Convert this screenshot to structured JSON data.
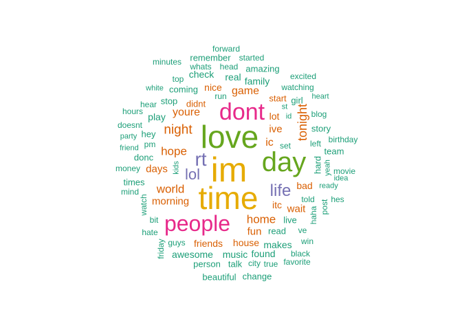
{
  "palette": {
    "teal": "#1b9e77",
    "orange": "#d95f02",
    "purple": "#7570b3",
    "magenta": "#e7298a",
    "green": "#66a61e",
    "gold": "#e6ab02"
  },
  "words": [
    {
      "text": "im",
      "color": "gold"
    },
    {
      "text": "time",
      "color": "gold"
    },
    {
      "text": "love",
      "color": "green"
    },
    {
      "text": "day",
      "color": "green"
    },
    {
      "text": "dont",
      "color": "magenta"
    },
    {
      "text": "people",
      "color": "magenta"
    },
    {
      "text": "rt",
      "color": "purple"
    },
    {
      "text": "lol",
      "color": "purple"
    },
    {
      "text": "life",
      "color": "purple"
    },
    {
      "text": "tonight",
      "color": "orange"
    },
    {
      "text": "night",
      "color": "orange"
    },
    {
      "text": "youre",
      "color": "orange"
    },
    {
      "text": "hope",
      "color": "orange"
    },
    {
      "text": "home",
      "color": "orange"
    },
    {
      "text": "world",
      "color": "orange"
    },
    {
      "text": "game",
      "color": "orange"
    },
    {
      "text": "morning",
      "color": "orange"
    },
    {
      "text": "ic",
      "color": "orange"
    },
    {
      "text": "ive",
      "color": "orange"
    },
    {
      "text": "lot",
      "color": "orange"
    },
    {
      "text": "days",
      "color": "orange"
    },
    {
      "text": "fun",
      "color": "orange"
    },
    {
      "text": "itc",
      "color": "orange"
    },
    {
      "text": "wait",
      "color": "orange"
    },
    {
      "text": "bad",
      "color": "orange"
    },
    {
      "text": "friends",
      "color": "orange"
    },
    {
      "text": "house",
      "color": "orange"
    },
    {
      "text": "nice",
      "color": "orange"
    },
    {
      "text": "didnt",
      "color": "orange"
    },
    {
      "text": "start",
      "color": "orange"
    },
    {
      "text": "forward",
      "color": "teal"
    },
    {
      "text": "remember",
      "color": "teal"
    },
    {
      "text": "started",
      "color": "teal"
    },
    {
      "text": "minutes",
      "color": "teal"
    },
    {
      "text": "whats",
      "color": "teal"
    },
    {
      "text": "head",
      "color": "teal"
    },
    {
      "text": "amazing",
      "color": "teal"
    },
    {
      "text": "check",
      "color": "teal"
    },
    {
      "text": "real",
      "color": "teal"
    },
    {
      "text": "top",
      "color": "teal"
    },
    {
      "text": "family",
      "color": "teal"
    },
    {
      "text": "excited",
      "color": "teal"
    },
    {
      "text": "white",
      "color": "teal"
    },
    {
      "text": "coming",
      "color": "teal"
    },
    {
      "text": "watching",
      "color": "teal"
    },
    {
      "text": "run",
      "color": "teal"
    },
    {
      "text": "heart",
      "color": "teal"
    },
    {
      "text": "hear",
      "color": "teal"
    },
    {
      "text": "stop",
      "color": "teal"
    },
    {
      "text": "girl",
      "color": "teal"
    },
    {
      "text": "st",
      "color": "teal"
    },
    {
      "text": "hours",
      "color": "teal"
    },
    {
      "text": "blog",
      "color": "teal"
    },
    {
      "text": "play",
      "color": "teal"
    },
    {
      "text": "id",
      "color": "teal"
    },
    {
      "text": "doesnt",
      "color": "teal"
    },
    {
      "text": "story",
      "color": "teal"
    },
    {
      "text": "hey",
      "color": "teal"
    },
    {
      "text": "party",
      "color": "teal"
    },
    {
      "text": "pm",
      "color": "teal"
    },
    {
      "text": "birthday",
      "color": "teal"
    },
    {
      "text": "left",
      "color": "teal"
    },
    {
      "text": "set",
      "color": "teal"
    },
    {
      "text": "friend",
      "color": "teal"
    },
    {
      "text": "team",
      "color": "teal"
    },
    {
      "text": "donc",
      "color": "teal"
    },
    {
      "text": "hard",
      "color": "teal"
    },
    {
      "text": "kids",
      "color": "teal"
    },
    {
      "text": "yeah",
      "color": "teal"
    },
    {
      "text": "movie",
      "color": "teal"
    },
    {
      "text": "money",
      "color": "teal"
    },
    {
      "text": "idea",
      "color": "teal"
    },
    {
      "text": "times",
      "color": "teal"
    },
    {
      "text": "ready",
      "color": "teal"
    },
    {
      "text": "mind",
      "color": "teal"
    },
    {
      "text": "told",
      "color": "teal"
    },
    {
      "text": "hes",
      "color": "teal"
    },
    {
      "text": "watch",
      "color": "teal"
    },
    {
      "text": "post",
      "color": "teal"
    },
    {
      "text": "haha",
      "color": "teal"
    },
    {
      "text": "bit",
      "color": "teal"
    },
    {
      "text": "live",
      "color": "teal"
    },
    {
      "text": "read",
      "color": "teal"
    },
    {
      "text": "ve",
      "color": "teal"
    },
    {
      "text": "hate",
      "color": "teal"
    },
    {
      "text": "friday",
      "color": "teal"
    },
    {
      "text": "guys",
      "color": "teal"
    },
    {
      "text": "makes",
      "color": "teal"
    },
    {
      "text": "win",
      "color": "teal"
    },
    {
      "text": "awesome",
      "color": "teal"
    },
    {
      "text": "music",
      "color": "teal"
    },
    {
      "text": "found",
      "color": "teal"
    },
    {
      "text": "black",
      "color": "teal"
    },
    {
      "text": "person",
      "color": "teal"
    },
    {
      "text": "talk",
      "color": "teal"
    },
    {
      "text": "city",
      "color": "teal"
    },
    {
      "text": "true",
      "color": "teal"
    },
    {
      "text": "favorite",
      "color": "teal"
    },
    {
      "text": "beautiful",
      "color": "teal"
    },
    {
      "text": "change",
      "color": "teal"
    }
  ]
}
